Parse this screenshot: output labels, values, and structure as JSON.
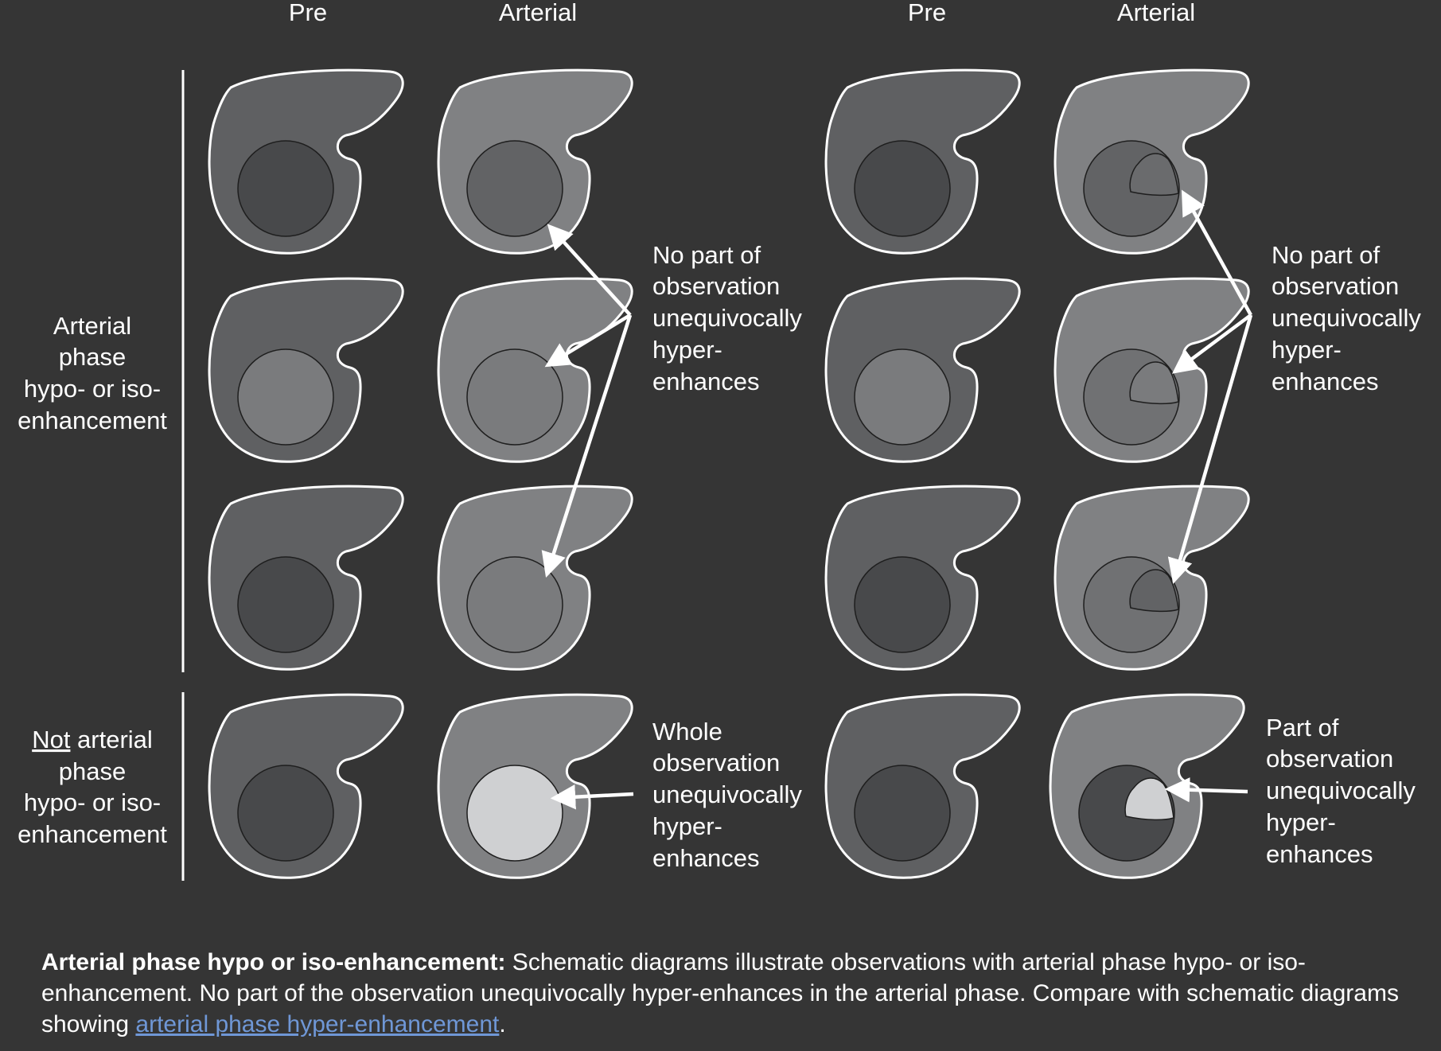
{
  "columns": {
    "pre_left": "Pre",
    "arterial_left": "Arterial",
    "pre_right": "Pre",
    "arterial_right": "Arterial"
  },
  "row_groups": {
    "top": [
      "Arterial",
      "phase",
      "hypo- or iso-",
      "enhancement"
    ],
    "bottom_underlined": "Not",
    "bottom_first_rest": " arterial",
    "bottom": [
      "phase",
      "hypo- or iso-",
      "enhancement"
    ]
  },
  "annotations": {
    "left_top": [
      "No part of",
      "observation",
      "unequivocally",
      "hyper-",
      "enhances"
    ],
    "left_bottom": [
      "Whole",
      "observation",
      "unequivocally",
      "hyper-",
      "enhances"
    ],
    "right_top": [
      "No part of",
      "observation",
      "unequivocally",
      "hyper-",
      "enhances"
    ],
    "right_bottom": [
      "Part of",
      "observation",
      "unequivocally",
      "hyper-",
      "enhances"
    ]
  },
  "caption": {
    "lead": "Arterial phase hypo or iso-enhancement:",
    "body": " Schematic diagrams illustrate observations with arterial phase hypo- or iso-enhancement. No part of the observation unequivocally hyper-enhances in the arterial phase. Compare with schematic diagrams showing ",
    "link": "arterial phase hyper-enhancement",
    "tail": "."
  },
  "colors": {
    "background": "#353535",
    "liver_pre": "#5f6062",
    "liver_arterial": "#808183",
    "lesion_dark": "#48494b",
    "lesion_mid": "#626365",
    "lesion_gray": "#7a7b7d",
    "lesion_bright": "#cfd0d2",
    "outline": "#ffffff",
    "link": "#6f97d6"
  }
}
